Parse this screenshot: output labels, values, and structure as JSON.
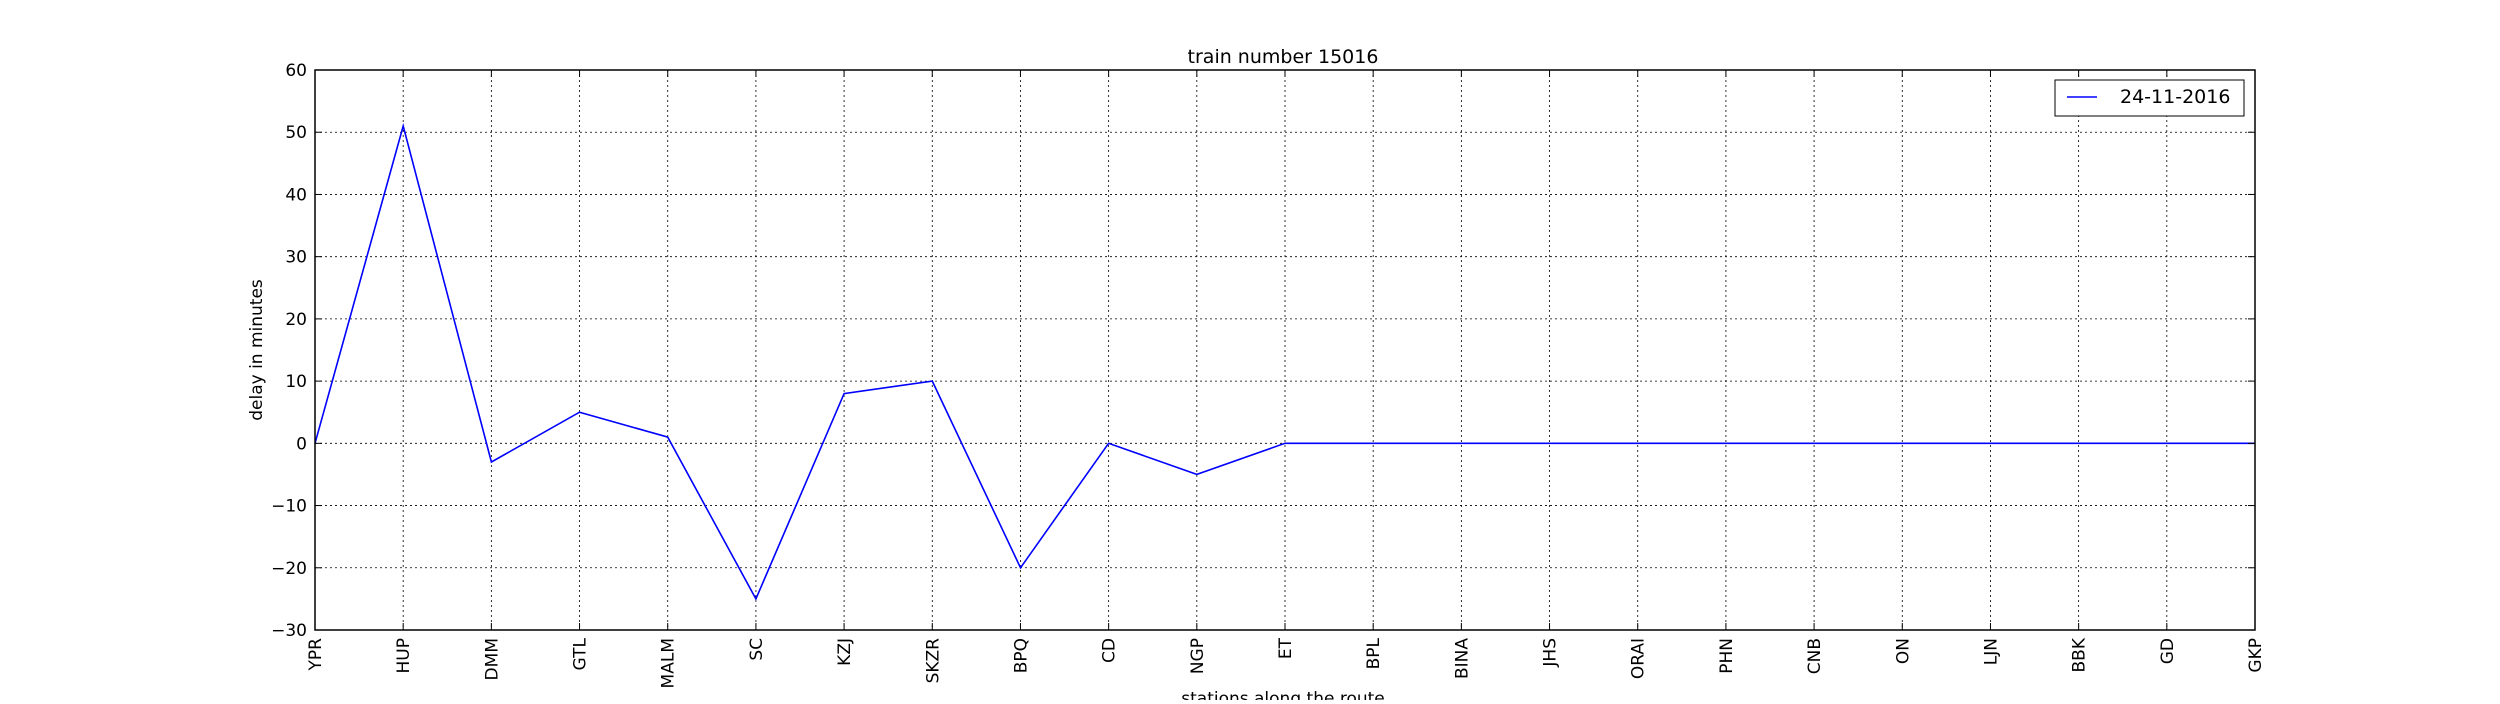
{
  "chart_data": {
    "type": "line",
    "title": "train number 15016",
    "xlabel": "stations along the route",
    "ylabel": "delay in minutes",
    "categories": [
      "YPR",
      "HUP",
      "DMM",
      "GTL",
      "MALM",
      "SC",
      "KZJ",
      "SKZR",
      "BPQ",
      "CD",
      "NGP",
      "ET",
      "BPL",
      "BINA",
      "JHS",
      "ORAI",
      "PHN",
      "CNB",
      "ON",
      "LJN",
      "BBK",
      "GD",
      "GKP"
    ],
    "series": [
      {
        "name": "24-11-2016",
        "color": "#0000ff",
        "values": [
          0,
          51,
          -3,
          5,
          1,
          -25,
          8,
          10,
          -20,
          0,
          -5,
          0,
          0,
          0,
          0,
          0,
          0,
          0,
          0,
          0,
          0,
          0,
          0
        ]
      }
    ],
    "ylim": [
      -30,
      60
    ],
    "yticks": [
      -30,
      -20,
      -10,
      0,
      10,
      20,
      30,
      40,
      50,
      60
    ],
    "grid": true,
    "legend_position": "top-right"
  }
}
